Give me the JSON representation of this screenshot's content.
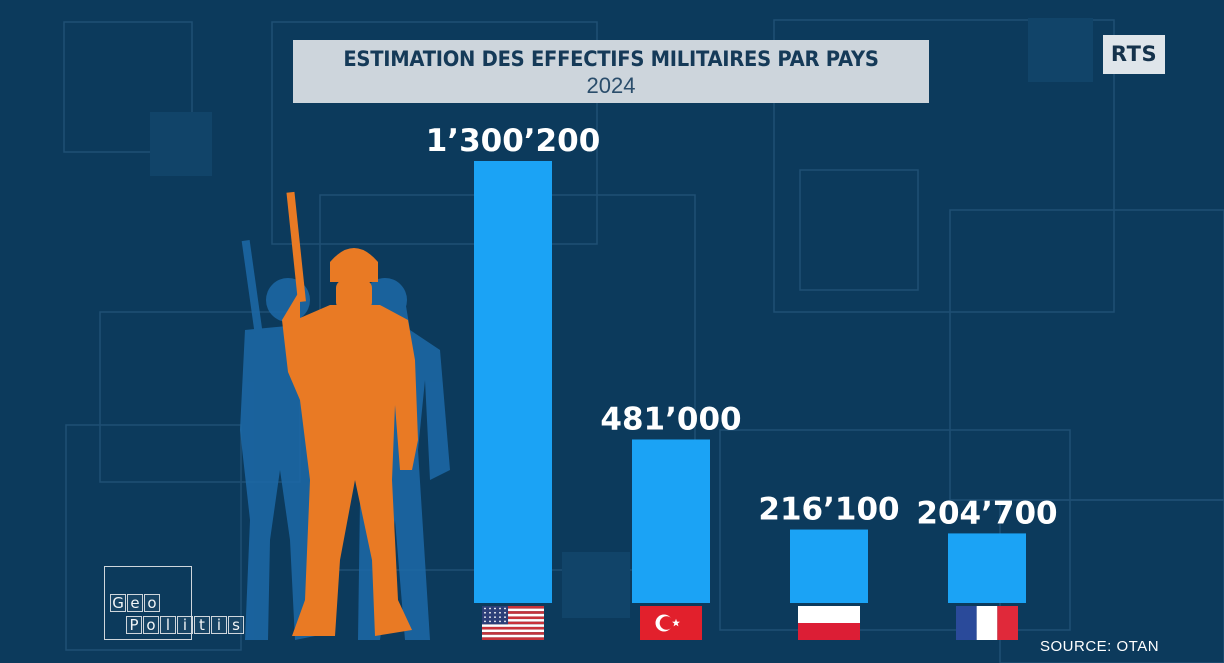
{
  "header": {
    "title": "ESTIMATION DES EFFECTIFS MILITAIRES PAR PAYS",
    "subtitle": "2024"
  },
  "broadcaster_logo": "RTS",
  "source": "SOURCE: OTAN",
  "show_logo": {
    "letters_row1": [
      "G",
      "e",
      "o"
    ],
    "letters_row2": [
      "P",
      "o",
      "l",
      "i",
      "t",
      "i",
      "s"
    ]
  },
  "colors": {
    "background": "#0c3a5c",
    "bar": "#1ba3f5",
    "soldier_front": "#e97a24",
    "soldier_back": "#1d6aa8",
    "title_box": "#cdd5dc"
  },
  "icons": [
    "soldier-silhouette-icon",
    "flag-usa-icon",
    "flag-turkey-icon",
    "flag-poland-icon",
    "flag-france-icon"
  ],
  "chart_data": {
    "type": "bar",
    "title": "ESTIMATION DES EFFECTIFS MILITAIRES PAR PAYS",
    "subtitle": "2024",
    "categories": [
      "flag-usa",
      "flag-turkey",
      "flag-poland",
      "flag-france"
    ],
    "values": [
      1300200,
      481000,
      216100,
      204700
    ],
    "data_labels": [
      "1’300’200",
      "481’000",
      "216’100",
      "204’700"
    ],
    "ylim": [
      0,
      1300200
    ],
    "grid": false,
    "legend": "none"
  }
}
